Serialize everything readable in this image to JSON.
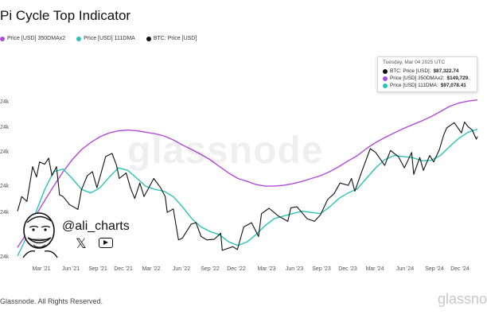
{
  "title": "Pi Cycle Top Indicator",
  "legend": [
    {
      "label": "Price [USD] 350DMAx2",
      "color": "#b04bdb"
    },
    {
      "label": "Price [USD] 111DMA",
      "color": "#2bc4b6"
    },
    {
      "label": "BTC: Price [USD]",
      "color": "#111111"
    }
  ],
  "tooltip": {
    "date": "Tuesday, Mar 04 2025 UTC",
    "rows": [
      {
        "label": "BTC: Price [USD]:",
        "value": "$87,322.74",
        "color": "#111111"
      },
      {
        "label": "Price [USD] 350DMAx2:",
        "value": "$149,729.",
        "color": "#b04bdb"
      },
      {
        "label": "Price [USD] 111DMA:",
        "value": "$97,078.41",
        "color": "#2bc4b6"
      }
    ]
  },
  "footer": "Glassnode. All Rights Reserved.",
  "watermark": "glassnode",
  "watermark_bottom": "glassno",
  "social": {
    "handle": "@ali_charts",
    "x_icon": "x-icon",
    "video_icon": "youtube-icon"
  },
  "chart_data": {
    "type": "line",
    "title": "Pi Cycle Top Indicator",
    "x_tick_labels": [
      "Mar '21",
      "Jun '21",
      "Sep '21",
      "Dec '21",
      "Mar '22",
      "Jun '22",
      "Sep '22",
      "Dec '22",
      "Mar '23",
      "Jun '23",
      "Sep '23",
      "Dec '23",
      "Mar '24",
      "Jun '24",
      "Sep '24",
      "Dec '24"
    ],
    "y_tick_labels": [
      "24k",
      "24k",
      "24k",
      "24k",
      "24k",
      "24k",
      "24k"
    ],
    "x_range": [
      "2021-01-01",
      "2025-03-04"
    ],
    "y_scale": "log",
    "grid": false,
    "legend_position": "top-left",
    "series": [
      {
        "name": "Price [USD] 350DMAx2",
        "color": "#b04bdb",
        "points": [
          [
            "2021-01-01",
            17000
          ],
          [
            "2021-02-01",
            21000
          ],
          [
            "2021-03-01",
            27000
          ],
          [
            "2021-04-01",
            34000
          ],
          [
            "2021-05-01",
            42000
          ],
          [
            "2021-06-01",
            52000
          ],
          [
            "2021-07-01",
            62000
          ],
          [
            "2021-08-01",
            72000
          ],
          [
            "2021-09-01",
            80000
          ],
          [
            "2021-10-01",
            87000
          ],
          [
            "2021-11-01",
            92000
          ],
          [
            "2021-12-01",
            95000
          ],
          [
            "2022-01-01",
            96000
          ],
          [
            "2022-02-01",
            95000
          ],
          [
            "2022-03-01",
            93000
          ],
          [
            "2022-04-01",
            91000
          ],
          [
            "2022-05-01",
            88000
          ],
          [
            "2022-06-01",
            83000
          ],
          [
            "2022-07-01",
            77000
          ],
          [
            "2022-08-01",
            72000
          ],
          [
            "2022-09-01",
            67000
          ],
          [
            "2022-10-01",
            62000
          ],
          [
            "2022-11-01",
            56000
          ],
          [
            "2022-12-01",
            51000
          ],
          [
            "2023-01-01",
            47000
          ],
          [
            "2023-02-01",
            45000
          ],
          [
            "2023-03-01",
            43000
          ],
          [
            "2023-04-01",
            42000
          ],
          [
            "2023-05-01",
            42000
          ],
          [
            "2023-06-01",
            42500
          ],
          [
            "2023-07-01",
            43500
          ],
          [
            "2023-08-01",
            45000
          ],
          [
            "2023-09-01",
            47000
          ],
          [
            "2023-10-01",
            49000
          ],
          [
            "2023-11-01",
            52000
          ],
          [
            "2023-12-01",
            56000
          ],
          [
            "2024-01-01",
            61000
          ],
          [
            "2024-02-01",
            66000
          ],
          [
            "2024-03-01",
            73000
          ],
          [
            "2024-04-01",
            80000
          ],
          [
            "2024-05-01",
            86000
          ],
          [
            "2024-06-01",
            92000
          ],
          [
            "2024-07-01",
            98000
          ],
          [
            "2024-08-01",
            104000
          ],
          [
            "2024-09-01",
            110000
          ],
          [
            "2024-10-01",
            117000
          ],
          [
            "2024-11-01",
            126000
          ],
          [
            "2024-12-01",
            136000
          ],
          [
            "2025-01-01",
            143000
          ],
          [
            "2025-02-01",
            147000
          ],
          [
            "2025-03-04",
            149729
          ]
        ]
      },
      {
        "name": "Price [USD] 111DMA",
        "color": "#2bc4b6",
        "points": [
          [
            "2021-01-01",
            15000
          ],
          [
            "2021-02-01",
            20000
          ],
          [
            "2021-03-01",
            28000
          ],
          [
            "2021-04-01",
            40000
          ],
          [
            "2021-05-01",
            52000
          ],
          [
            "2021-06-01",
            54000
          ],
          [
            "2021-07-01",
            47000
          ],
          [
            "2021-08-01",
            40000
          ],
          [
            "2021-09-01",
            38000
          ],
          [
            "2021-10-01",
            41000
          ],
          [
            "2021-11-01",
            48000
          ],
          [
            "2021-12-01",
            55000
          ],
          [
            "2022-01-01",
            53000
          ],
          [
            "2022-02-01",
            47000
          ],
          [
            "2022-03-01",
            42000
          ],
          [
            "2022-04-01",
            40000
          ],
          [
            "2022-05-01",
            39000
          ],
          [
            "2022-06-01",
            36000
          ],
          [
            "2022-07-01",
            31000
          ],
          [
            "2022-08-01",
            26000
          ],
          [
            "2022-09-01",
            23000
          ],
          [
            "2022-10-01",
            21500
          ],
          [
            "2022-11-01",
            20500
          ],
          [
            "2022-12-01",
            18500
          ],
          [
            "2023-01-01",
            17500
          ],
          [
            "2023-02-01",
            18500
          ],
          [
            "2023-03-01",
            20500
          ],
          [
            "2023-04-01",
            23500
          ],
          [
            "2023-05-01",
            26000
          ],
          [
            "2023-06-01",
            27000
          ],
          [
            "2023-07-01",
            28000
          ],
          [
            "2023-08-01",
            29000
          ],
          [
            "2023-09-01",
            28500
          ],
          [
            "2023-10-01",
            28000
          ],
          [
            "2023-11-01",
            31000
          ],
          [
            "2023-12-01",
            35000
          ],
          [
            "2024-01-01",
            38000
          ],
          [
            "2024-02-01",
            40500
          ],
          [
            "2024-03-01",
            47000
          ],
          [
            "2024-04-01",
            55000
          ],
          [
            "2024-05-01",
            62000
          ],
          [
            "2024-06-01",
            66000
          ],
          [
            "2024-07-01",
            65000
          ],
          [
            "2024-08-01",
            64000
          ],
          [
            "2024-09-01",
            61000
          ],
          [
            "2024-10-01",
            61500
          ],
          [
            "2024-11-01",
            66000
          ],
          [
            "2024-12-01",
            75000
          ],
          [
            "2025-01-01",
            85000
          ],
          [
            "2025-02-01",
            93000
          ],
          [
            "2025-03-04",
            97078.41
          ]
        ]
      },
      {
        "name": "BTC: Price [USD]",
        "color": "#111111",
        "points": [
          [
            "2021-01-01",
            29000
          ],
          [
            "2021-01-15",
            36000
          ],
          [
            "2021-02-01",
            33500
          ],
          [
            "2021-02-20",
            56000
          ],
          [
            "2021-03-05",
            48000
          ],
          [
            "2021-03-15",
            60000
          ],
          [
            "2021-04-01",
            58000
          ],
          [
            "2021-04-14",
            63500
          ],
          [
            "2021-04-25",
            49000
          ],
          [
            "2021-05-10",
            56000
          ],
          [
            "2021-05-20",
            37000
          ],
          [
            "2021-06-01",
            36000
          ],
          [
            "2021-06-22",
            32000
          ],
          [
            "2021-07-20",
            29800
          ],
          [
            "2021-08-01",
            40000
          ],
          [
            "2021-08-20",
            49000
          ],
          [
            "2021-09-06",
            52000
          ],
          [
            "2021-09-21",
            41000
          ],
          [
            "2021-10-01",
            48000
          ],
          [
            "2021-10-20",
            65000
          ],
          [
            "2021-11-10",
            68000
          ],
          [
            "2021-11-25",
            57000
          ],
          [
            "2021-12-04",
            47000
          ],
          [
            "2021-12-27",
            51000
          ],
          [
            "2022-01-10",
            41000
          ],
          [
            "2022-01-24",
            35000
          ],
          [
            "2022-02-10",
            44000
          ],
          [
            "2022-02-24",
            36000
          ],
          [
            "2022-03-28",
            47000
          ],
          [
            "2022-04-20",
            41000
          ],
          [
            "2022-05-05",
            36000
          ],
          [
            "2022-05-12",
            28500
          ],
          [
            "2022-06-01",
            30000
          ],
          [
            "2022-06-18",
            19000
          ],
          [
            "2022-07-01",
            19500
          ],
          [
            "2022-07-30",
            24000
          ],
          [
            "2022-08-15",
            24500
          ],
          [
            "2022-09-01",
            20000
          ],
          [
            "2022-09-20",
            19000
          ],
          [
            "2022-10-15",
            19200
          ],
          [
            "2022-11-05",
            21000
          ],
          [
            "2022-11-10",
            16300
          ],
          [
            "2022-12-15",
            17200
          ],
          [
            "2022-12-30",
            16500
          ],
          [
            "2023-01-20",
            23000
          ],
          [
            "2023-02-15",
            24500
          ],
          [
            "2023-03-10",
            20000
          ],
          [
            "2023-03-20",
            28000
          ],
          [
            "2023-04-14",
            30300
          ],
          [
            "2023-05-15",
            27000
          ],
          [
            "2023-06-15",
            25000
          ],
          [
            "2023-06-25",
            30500
          ],
          [
            "2023-07-15",
            31000
          ],
          [
            "2023-08-18",
            26000
          ],
          [
            "2023-09-11",
            25000
          ],
          [
            "2023-10-01",
            27500
          ],
          [
            "2023-10-25",
            34500
          ],
          [
            "2023-11-15",
            37500
          ],
          [
            "2023-12-05",
            44000
          ],
          [
            "2024-01-01",
            42500
          ],
          [
            "2024-01-12",
            47000
          ],
          [
            "2024-01-23",
            39000
          ],
          [
            "2024-02-15",
            52000
          ],
          [
            "2024-03-14",
            73000
          ],
          [
            "2024-04-01",
            69000
          ],
          [
            "2024-05-01",
            57000
          ],
          [
            "2024-05-20",
            71000
          ],
          [
            "2024-06-15",
            65000
          ],
          [
            "2024-07-05",
            55000
          ],
          [
            "2024-07-29",
            69000
          ],
          [
            "2024-08-05",
            50000
          ],
          [
            "2024-08-25",
            64000
          ],
          [
            "2024-09-06",
            53000
          ],
          [
            "2024-09-27",
            66000
          ],
          [
            "2024-10-10",
            60000
          ],
          [
            "2024-10-29",
            72000
          ],
          [
            "2024-11-12",
            89000
          ],
          [
            "2024-11-22",
            99000
          ],
          [
            "2024-12-05",
            103000
          ],
          [
            "2024-12-17",
            107000
          ],
          [
            "2025-01-10",
            92000
          ],
          [
            "2025-01-20",
            108000
          ],
          [
            "2025-02-01",
            101000
          ],
          [
            "2025-02-15",
            96000
          ],
          [
            "2025-02-28",
            84000
          ],
          [
            "2025-03-04",
            87322.74
          ]
        ]
      }
    ]
  }
}
